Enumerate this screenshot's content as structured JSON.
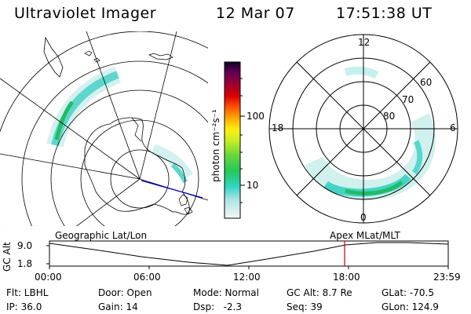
{
  "header": {
    "title": "Ultraviolet Imager",
    "date": "12 Mar 07",
    "time": "17:51:38 UT"
  },
  "colorbar": {
    "unit_label": "photon cm⁻²s⁻¹",
    "ticks": [
      "100",
      "10"
    ],
    "scale": "log"
  },
  "polar_plot": {
    "mlt_labels": [
      "12",
      "18",
      "6",
      "0"
    ],
    "lat_labels": [
      "60",
      "70",
      "80"
    ]
  },
  "timeline": {
    "left_title": "Geographic Lat/Lon",
    "right_title": "Apex MLat/MLT",
    "axis_label": "GC Alt",
    "y_ticks": [
      "9.0",
      "1.8"
    ],
    "x_ticks": [
      "00:00",
      "06:00",
      "12:00",
      "18:00",
      "23:59"
    ],
    "current_time_marker": "17:51:38",
    "marker_color": "#cc0000"
  },
  "status": {
    "filter": "Flt: LBHL",
    "ip": "IP: 36.0",
    "door": "Door: Open",
    "gain": "Gain: 14",
    "mode": "Mode: Normal",
    "dsp": "Dsp:   -2.3",
    "gc_alt": "GC Alt: 8.7 Re",
    "seq": "Seq: 39",
    "glat": "GLat: -70.5",
    "glon": "GLon: 124.9"
  },
  "colors": {
    "aurora_low": "#9fe3dd",
    "aurora_mid": "#33cccc",
    "aurora_high": "#22aa55",
    "orbit_track": "#0000cc",
    "grid": "#000000"
  }
}
